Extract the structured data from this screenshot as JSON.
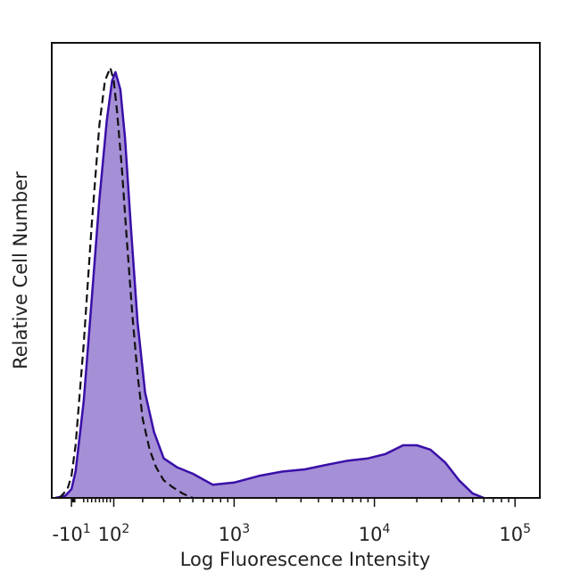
{
  "chart_data": {
    "type": "area",
    "title": "",
    "xlabel": "Log Fluorescence Intensity",
    "ylabel": "Relative Cell Number",
    "x_scale": "biexponential",
    "xlim": [
      -60,
      150000
    ],
    "ylim": [
      0,
      100
    ],
    "grid": false,
    "legend": "none",
    "x_ticks": [
      {
        "value": -10,
        "base": "-10",
        "exp": "1"
      },
      {
        "value": 100,
        "base": "10",
        "exp": "2"
      },
      {
        "value": 1000,
        "base": "10",
        "exp": "3"
      },
      {
        "value": 10000,
        "base": "10",
        "exp": "4"
      },
      {
        "value": 100000,
        "base": "10",
        "exp": "5"
      }
    ],
    "series": [
      {
        "style": "filled",
        "fill_color": "#a58fd6",
        "line_color": "#3a0fa8",
        "x": [
          -50,
          -25,
          -10,
          0,
          20,
          40,
          60,
          80,
          95,
          105,
          120,
          135,
          155,
          180,
          210,
          250,
          300,
          380,
          500,
          700,
          1000,
          1500,
          2200,
          3200,
          4500,
          6500,
          9000,
          12000,
          16000,
          20000,
          25000,
          32000,
          40000,
          50000,
          60000
        ],
        "y": [
          0,
          0.5,
          2,
          6,
          22,
          45,
          68,
          86,
          95,
          97,
          93,
          82,
          62,
          40,
          24,
          15,
          9,
          7,
          5.5,
          3,
          3.5,
          5,
          6,
          6.5,
          7.5,
          8.5,
          9,
          10,
          12,
          12,
          11,
          8,
          4,
          1,
          0
        ]
      },
      {
        "style": "dashed",
        "line_color": "#111111",
        "x": [
          -40,
          -20,
          -10,
          0,
          20,
          40,
          60,
          75,
          90,
          100,
          110,
          125,
          140,
          160,
          180,
          200,
          230,
          260,
          300,
          350,
          420,
          500
        ],
        "y": [
          0,
          2,
          5,
          12,
          35,
          62,
          85,
          95,
          98,
          95,
          88,
          75,
          60,
          42,
          28,
          18,
          11,
          7,
          4,
          2.5,
          1,
          0
        ]
      }
    ]
  }
}
